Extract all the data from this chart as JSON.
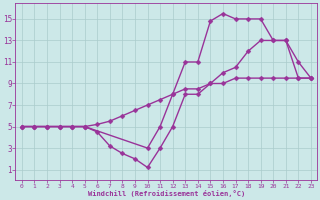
{
  "bg_color": "#cce8e8",
  "line_color": "#993399",
  "marker": "D",
  "markersize": 2.5,
  "linewidth": 1.0,
  "xlim": [
    -0.5,
    23.5
  ],
  "ylim": [
    0,
    16.5
  ],
  "xticks": [
    0,
    1,
    2,
    3,
    4,
    5,
    6,
    7,
    8,
    9,
    10,
    11,
    12,
    13,
    14,
    15,
    16,
    17,
    18,
    19,
    20,
    21,
    22,
    23
  ],
  "yticks": [
    1,
    3,
    5,
    7,
    9,
    11,
    13,
    15
  ],
  "xlabel": "Windchill (Refroidissement éolien,°C)",
  "grid_color": "#aacccc",
  "line1_x": [
    0,
    1,
    2,
    3,
    4,
    5,
    10,
    11,
    12,
    13,
    14,
    15,
    16,
    17,
    18,
    19,
    20,
    21,
    22,
    23
  ],
  "line1_y": [
    5,
    5,
    5,
    5,
    5,
    5,
    3,
    5,
    8,
    11,
    11,
    14.8,
    15.5,
    15.0,
    15.0,
    15.0,
    13.0,
    13.0,
    11.0,
    9.5
  ],
  "line2_x": [
    0,
    1,
    2,
    3,
    4,
    5,
    6,
    7,
    8,
    9,
    10,
    11,
    12,
    13,
    14,
    15,
    16,
    17,
    18,
    19,
    20,
    21,
    22,
    23
  ],
  "line2_y": [
    5,
    5,
    5,
    5,
    5,
    5,
    4.5,
    3.2,
    2.5,
    2.0,
    1.2,
    3.0,
    5.0,
    8.0,
    8.0,
    9.0,
    10.0,
    10.5,
    12.0,
    13.0,
    13.0,
    13.0,
    9.5,
    9.5
  ],
  "line3_x": [
    0,
    1,
    2,
    3,
    4,
    5,
    6,
    7,
    8,
    9,
    10,
    11,
    12,
    13,
    14,
    15,
    16,
    17,
    18,
    19,
    20,
    21,
    22,
    23
  ],
  "line3_y": [
    5,
    5,
    5,
    5,
    5,
    5,
    5.2,
    5.5,
    6.0,
    6.5,
    7.0,
    7.5,
    8.0,
    8.5,
    8.5,
    9.0,
    9.0,
    9.5,
    9.5,
    9.5,
    9.5,
    9.5,
    9.5,
    9.5
  ]
}
